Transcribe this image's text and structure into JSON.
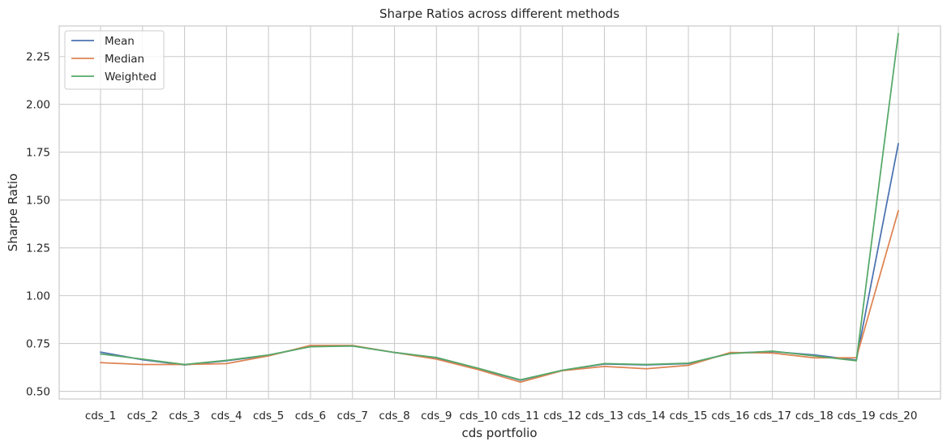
{
  "chart_data": {
    "type": "line",
    "title": "Sharpe Ratios across different methods",
    "xlabel": "cds portfolio",
    "ylabel": "Sharpe Ratio",
    "categories": [
      "cds_1",
      "cds_2",
      "cds_3",
      "cds_4",
      "cds_5",
      "cds_6",
      "cds_7",
      "cds_8",
      "cds_9",
      "cds_10",
      "cds_11",
      "cds_12",
      "cds_13",
      "cds_14",
      "cds_15",
      "cds_16",
      "cds_17",
      "cds_18",
      "cds_19",
      "cds_20"
    ],
    "ylim": [
      0.46,
      2.41
    ],
    "yticks": [
      0.5,
      0.75,
      1.0,
      1.25,
      1.5,
      1.75,
      2.0,
      2.25
    ],
    "ytick_labels": [
      "0.50",
      "0.75",
      "1.00",
      "1.25",
      "1.50",
      "1.75",
      "2.00",
      "2.25"
    ],
    "grid": true,
    "legend_position": "top-left",
    "series": [
      {
        "name": "Mean",
        "color": "#4c72b0",
        "values": [
          0.705,
          0.665,
          0.638,
          0.66,
          0.688,
          0.735,
          0.737,
          0.703,
          0.675,
          0.618,
          0.558,
          0.61,
          0.643,
          0.638,
          0.645,
          0.7,
          0.708,
          0.69,
          0.663,
          1.795
        ]
      },
      {
        "name": "Median",
        "color": "#dd8452",
        "values": [
          0.65,
          0.64,
          0.64,
          0.645,
          0.685,
          0.74,
          0.74,
          0.703,
          0.668,
          0.613,
          0.548,
          0.608,
          0.63,
          0.618,
          0.636,
          0.703,
          0.7,
          0.675,
          0.675,
          1.445
        ]
      },
      {
        "name": "Weighted",
        "color": "#55a868",
        "values": [
          0.695,
          0.668,
          0.64,
          0.662,
          0.69,
          0.733,
          0.737,
          0.703,
          0.677,
          0.62,
          0.56,
          0.61,
          0.645,
          0.64,
          0.647,
          0.697,
          0.71,
          0.685,
          0.66,
          2.37
        ]
      }
    ]
  }
}
